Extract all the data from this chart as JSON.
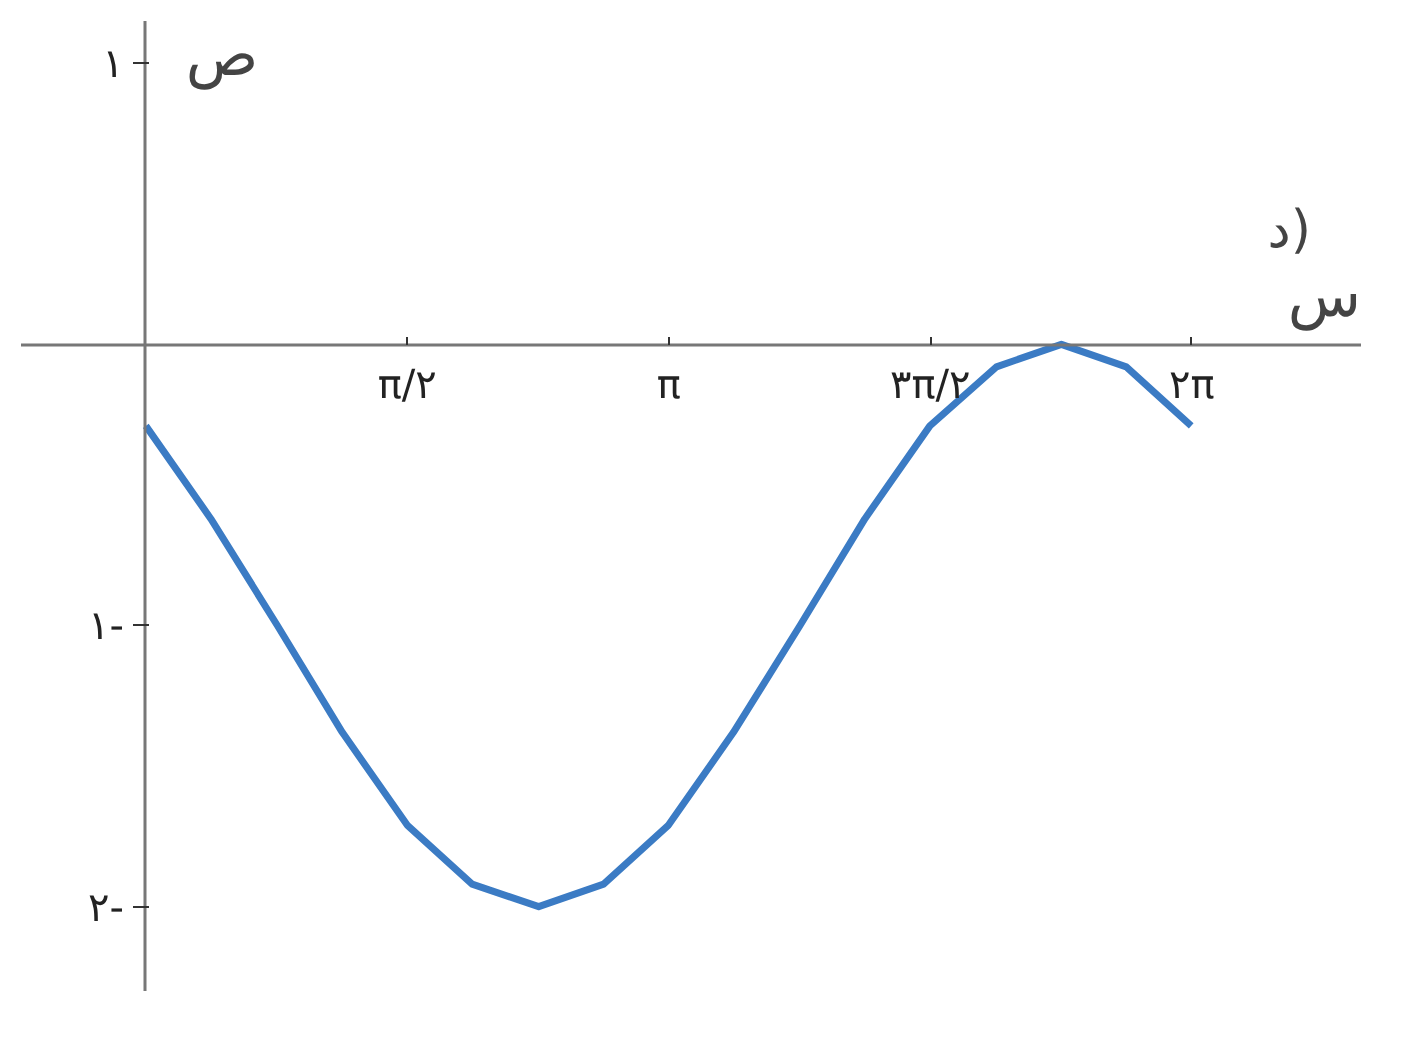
{
  "chart_data": {
    "type": "line",
    "xlabel": "س",
    "ylabel": "ص",
    "annotations": [
      "د)"
    ],
    "x": [
      0,
      0.39,
      0.79,
      1.18,
      1.57,
      1.96,
      2.36,
      2.75,
      3.14,
      3.53,
      3.93,
      4.32,
      4.71,
      5.11,
      5.5,
      5.89,
      6.28
    ],
    "series": [
      {
        "color": "#3b7bc4",
        "values": [
          -0.29,
          -0.62,
          -1,
          -1.38,
          -1.71,
          -1.92,
          -2,
          -1.92,
          -1.71,
          -1.38,
          -1,
          -0.62,
          -0.29,
          -0.08,
          0,
          -0.08,
          -0.29
        ]
      }
    ],
    "xlim": [
      -0.75,
      7.3
    ],
    "ylim": [
      -2.3,
      1.15
    ],
    "xticks": [
      {
        "value": 1.5708,
        "label": "π/٢"
      },
      {
        "value": 3.1416,
        "label": "π"
      },
      {
        "value": 4.7124,
        "label": "٣π/٢"
      },
      {
        "value": 6.2832,
        "label": "٢π"
      }
    ],
    "yticks": [
      {
        "value": 1,
        "label": "١"
      },
      {
        "value": -1,
        "label": "١-"
      },
      {
        "value": -2,
        "label": "٢-"
      }
    ],
    "grid": false,
    "marker": "none",
    "line_style": "solid"
  }
}
